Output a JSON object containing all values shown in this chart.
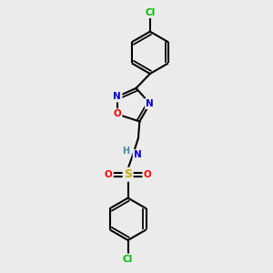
{
  "bg_color": "#ebebeb",
  "bond_color": "#000000",
  "line_width": 1.5,
  "atom_colors": {
    "C": "#000000",
    "N": "#0000cc",
    "O": "#ff0000",
    "S": "#ccaa00",
    "Cl": "#00bb00",
    "H": "#4488aa"
  },
  "font_size": 7.5,
  "fig_size": [
    3.0,
    3.0
  ],
  "dpi": 100
}
